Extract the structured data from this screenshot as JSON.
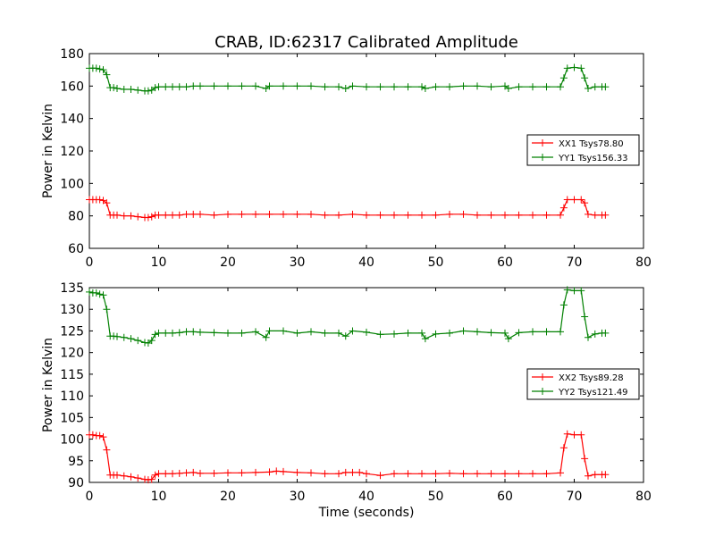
{
  "figure": {
    "title": "CRAB, ID:62317 Calibrated Amplitude",
    "xlabel": "Time (seconds)"
  },
  "chart_data": [
    {
      "type": "line",
      "ylabel": "Power in Kelvin",
      "xlim": [
        0,
        80
      ],
      "ylim": [
        60,
        180
      ],
      "xticks": [
        "0",
        "10",
        "20",
        "30",
        "40",
        "50",
        "60",
        "70",
        "80"
      ],
      "yticks": [
        "60",
        "80",
        "100",
        "120",
        "140",
        "160",
        "180"
      ],
      "legend_position": "right",
      "series": [
        {
          "name": "XX1 Tsys78.80",
          "color": "#ff0000",
          "x": [
            0,
            0.5,
            1,
            1.5,
            2,
            2.5,
            3,
            3.5,
            4,
            5,
            6,
            7,
            8,
            8.5,
            9,
            9.5,
            10,
            11,
            12,
            13,
            14,
            15,
            16,
            18,
            20,
            22,
            24,
            26,
            28,
            30,
            32,
            34,
            36,
            38,
            40,
            42,
            44,
            46,
            48,
            50,
            52,
            54,
            56,
            58,
            60,
            62,
            64,
            66,
            68,
            68.5,
            69,
            70,
            71,
            71.5,
            72,
            73,
            74,
            74.5
          ],
          "y": [
            90,
            90,
            90,
            90,
            89.5,
            88,
            80.5,
            80.5,
            80.5,
            80,
            80,
            79.5,
            79,
            79,
            79.5,
            80.5,
            80.5,
            80.5,
            80.5,
            80.5,
            81,
            81,
            81,
            80.5,
            81,
            81,
            81,
            81,
            81,
            81,
            81,
            80.5,
            80.5,
            81,
            80.5,
            80.5,
            80.5,
            80.5,
            80.5,
            80.5,
            81,
            81,
            80.5,
            80.5,
            80.5,
            80.5,
            80.5,
            80.5,
            80.5,
            85,
            90,
            90,
            90,
            88,
            81,
            80.5,
            80.5,
            80.5
          ]
        },
        {
          "name": "YY1 Tsys156.33",
          "color": "#008000",
          "x": [
            0,
            0.5,
            1,
            1.5,
            2,
            2.5,
            3,
            3.5,
            4,
            5,
            6,
            7,
            8,
            8.5,
            9,
            9.5,
            10,
            11,
            12,
            13,
            14,
            15,
            16,
            18,
            20,
            22,
            24,
            25.5,
            26,
            28,
            30,
            32,
            34,
            36,
            37,
            38,
            40,
            42,
            44,
            46,
            48,
            48.5,
            50,
            52,
            54,
            56,
            58,
            60,
            60.5,
            62,
            64,
            66,
            68,
            68.5,
            69,
            70,
            71,
            71.5,
            72,
            73,
            74,
            74.5
          ],
          "y": [
            171,
            171,
            171,
            170.5,
            170,
            167,
            159,
            159,
            158.5,
            158,
            158,
            157.5,
            157,
            157,
            157.5,
            159,
            159.5,
            159.5,
            159.5,
            159.5,
            159.5,
            160,
            160,
            160,
            160,
            160,
            160,
            158.5,
            160,
            160,
            160,
            160,
            159.5,
            159.5,
            158.5,
            160,
            159.5,
            159.5,
            159.5,
            159.5,
            159.5,
            158.5,
            159.5,
            159.5,
            160,
            160,
            159.5,
            160,
            158.5,
            159.5,
            159.5,
            159.5,
            159.5,
            165,
            171,
            171.5,
            171,
            165,
            158.5,
            159.5,
            159.5,
            159.5
          ]
        }
      ]
    },
    {
      "type": "line",
      "ylabel": "Power in Kelvin",
      "xlim": [
        0,
        80
      ],
      "ylim": [
        90,
        135
      ],
      "xticks": [
        "0",
        "10",
        "20",
        "30",
        "40",
        "50",
        "60",
        "70",
        "80"
      ],
      "yticks": [
        "90",
        "95",
        "100",
        "105",
        "110",
        "115",
        "120",
        "125",
        "130",
        "135"
      ],
      "legend_position": "right",
      "series": [
        {
          "name": "XX2 Tsys89.28",
          "color": "#ff0000",
          "x": [
            0,
            0.5,
            1,
            1.5,
            2,
            2.5,
            3,
            3.5,
            4,
            5,
            6,
            7,
            8,
            8.5,
            9,
            9.5,
            10,
            11,
            12,
            13,
            14,
            15,
            16,
            18,
            20,
            22,
            24,
            26,
            27,
            28,
            30,
            32,
            34,
            36,
            37,
            38,
            39,
            40,
            42,
            44,
            46,
            48,
            50,
            52,
            54,
            56,
            58,
            60,
            62,
            64,
            66,
            68,
            68.5,
            69,
            70,
            71,
            71.5,
            72,
            73,
            74,
            74.5
          ],
          "y": [
            101,
            101,
            100.8,
            100.8,
            100.5,
            97.5,
            91.7,
            91.7,
            91.7,
            91.5,
            91.3,
            91,
            90.7,
            90.6,
            90.7,
            91.7,
            92,
            92,
            92,
            92.1,
            92.2,
            92.3,
            92.1,
            92.1,
            92.2,
            92.2,
            92.3,
            92.4,
            92.6,
            92.5,
            92.3,
            92.2,
            92,
            92,
            92.3,
            92.3,
            92.3,
            92,
            91.6,
            92,
            92,
            92,
            92,
            92.1,
            92,
            92,
            92,
            92,
            92,
            92,
            92,
            92.2,
            98,
            101.2,
            101,
            101,
            95.5,
            91.5,
            91.8,
            91.8,
            91.8
          ]
        },
        {
          "name": "YY2 Tsys121.49",
          "color": "#008000",
          "x": [
            0,
            0.5,
            1,
            1.5,
            2,
            2.5,
            3,
            3.5,
            4,
            5,
            6,
            7,
            8,
            8.5,
            9,
            9.5,
            10,
            11,
            12,
            13,
            14,
            15,
            16,
            18,
            20,
            22,
            24,
            25.5,
            26,
            28,
            30,
            32,
            34,
            36,
            37,
            38,
            40,
            42,
            44,
            46,
            48,
            48.5,
            50,
            52,
            54,
            56,
            58,
            60,
            60.5,
            62,
            64,
            66,
            68,
            68.5,
            69,
            70,
            71,
            71.5,
            72,
            73,
            74,
            74.5
          ],
          "y": [
            134,
            133.8,
            133.8,
            133.5,
            133.3,
            130,
            123.8,
            123.8,
            123.7,
            123.5,
            123.2,
            122.8,
            122.3,
            122.2,
            122.8,
            124.2,
            124.5,
            124.5,
            124.5,
            124.6,
            124.8,
            124.8,
            124.7,
            124.6,
            124.5,
            124.5,
            124.8,
            123.5,
            125,
            125,
            124.5,
            124.8,
            124.5,
            124.5,
            123.8,
            125,
            124.7,
            124.2,
            124.3,
            124.5,
            124.5,
            123.2,
            124.3,
            124.5,
            125,
            124.8,
            124.6,
            124.5,
            123.2,
            124.6,
            124.8,
            124.8,
            124.8,
            131,
            134.5,
            134.3,
            134.3,
            128.3,
            123.5,
            124.3,
            124.5,
            124.5
          ]
        }
      ]
    }
  ]
}
